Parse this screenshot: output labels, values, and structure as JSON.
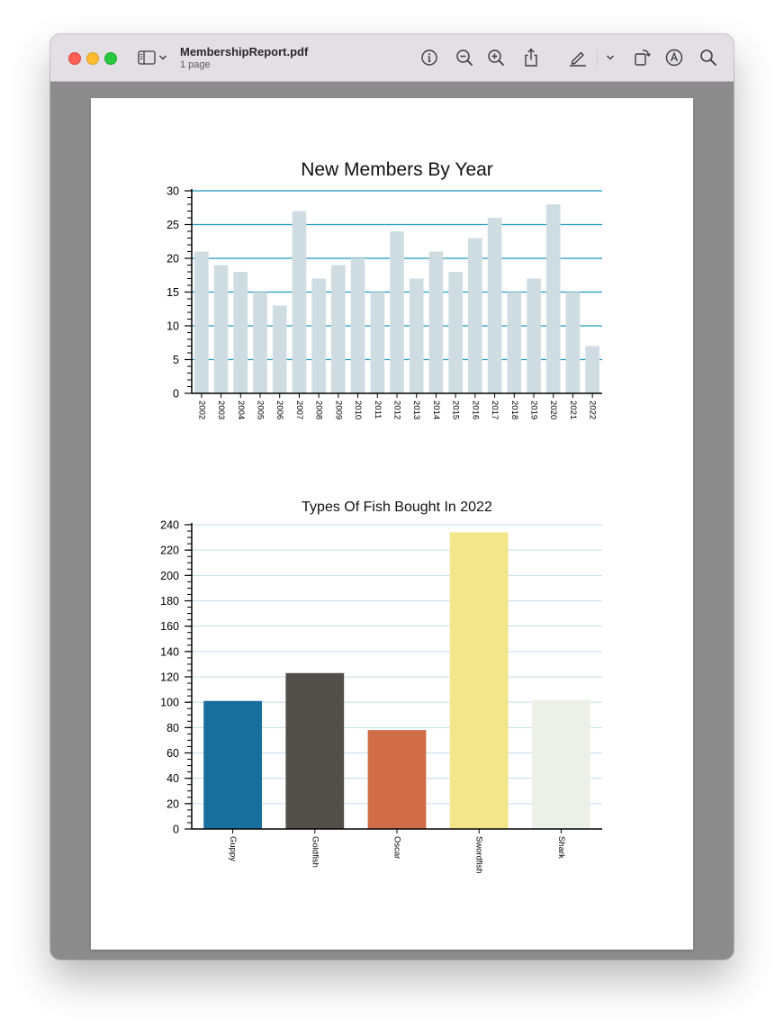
{
  "window": {
    "doc_title": "MembershipReport.pdf",
    "doc_subtitle": "1 page"
  },
  "toolbar": {
    "icons": [
      "sidebar-icon",
      "chevron-down-icon",
      "info-icon",
      "zoom-out-icon",
      "zoom-in-icon",
      "share-icon",
      "markup-pen-icon",
      "chevron-down-icon",
      "rotate-icon",
      "annotate-icon",
      "search-icon"
    ]
  },
  "chart_data": [
    {
      "type": "bar",
      "title": "New Members By Year",
      "xlabel": "",
      "ylabel": "",
      "categories": [
        "2002",
        "2003",
        "2004",
        "2005",
        "2006",
        "2007",
        "2008",
        "2009",
        "2010",
        "2011",
        "2012",
        "2013",
        "2014",
        "2015",
        "2016",
        "2017",
        "2018",
        "2019",
        "2020",
        "2021",
        "2022"
      ],
      "values": [
        21,
        19,
        18,
        15,
        13,
        27,
        17,
        19,
        20,
        15,
        24,
        17,
        21,
        18,
        23,
        26,
        15,
        17,
        28,
        15,
        7
      ],
      "ylim": [
        0,
        30
      ],
      "yticks": [
        0,
        5,
        10,
        15,
        20,
        25,
        30
      ],
      "bar_color": "#cfdde3",
      "grid_color": "#1f9bbd",
      "grid": true
    },
    {
      "type": "bar",
      "title": "Types Of Fish Bought In 2022",
      "xlabel": "",
      "ylabel": "",
      "categories": [
        "Guppy",
        "Goldfish",
        "Oscar",
        "Swordfish",
        "Shark"
      ],
      "values": [
        101,
        123,
        78,
        234,
        102
      ],
      "colors": [
        "#186e9c",
        "#524e4a",
        "#d16c48",
        "#f2e68a",
        "#edf0e6"
      ],
      "ylim": [
        0,
        240
      ],
      "yticks": [
        0,
        20,
        40,
        60,
        80,
        100,
        120,
        140,
        160,
        180,
        200,
        220,
        240
      ],
      "grid_color": "#c5dde6",
      "grid": true
    }
  ]
}
